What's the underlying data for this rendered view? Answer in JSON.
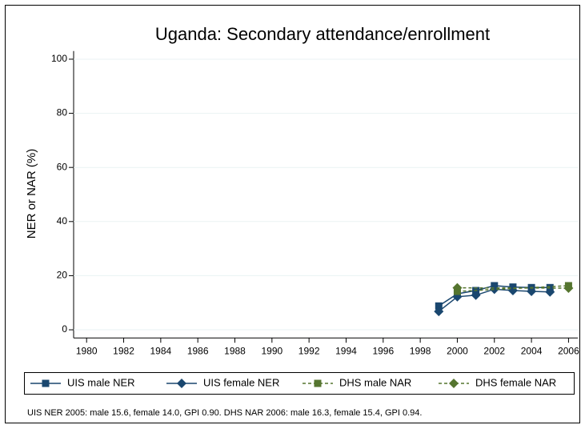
{
  "chart_data": {
    "type": "line",
    "title": "Uganda: Secondary attendance/enrollment",
    "y_label": "NER or NAR (%)",
    "note": "UIS NER 2005: male 15.6, female 14.0, GPI 0.90. DHS NAR 2006: male 16.3, female 15.4, GPI 0.94.",
    "x": [
      1999,
      2000,
      2001,
      2002,
      2003,
      2004,
      2005,
      2006
    ],
    "series": [
      {
        "name": "UIS male NER",
        "color": "#1a476f",
        "marker": "square",
        "dashed": false,
        "values": [
          8.8,
          13.3,
          14.5,
          16.3,
          15.8,
          15.6,
          15.6,
          null
        ]
      },
      {
        "name": "UIS female NER",
        "color": "#1a476f",
        "marker": "diamond",
        "dashed": false,
        "values": [
          6.8,
          12.2,
          12.8,
          15.0,
          14.5,
          14.2,
          14.0,
          null
        ]
      },
      {
        "name": "DHS male NAR",
        "color": "#55752f",
        "marker": "square",
        "dashed": true,
        "values": [
          null,
          14.2,
          null,
          null,
          null,
          null,
          null,
          16.3
        ]
      },
      {
        "name": "DHS female NAR",
        "color": "#55752f",
        "marker": "diamond",
        "dashed": true,
        "values": [
          null,
          15.5,
          null,
          null,
          null,
          null,
          null,
          15.4
        ]
      }
    ],
    "xlim": [
      1979.3,
      2006.5
    ],
    "xticks": [
      1980,
      1982,
      1984,
      1986,
      1988,
      1990,
      1992,
      1994,
      1996,
      1998,
      2000,
      2002,
      2004,
      2006
    ],
    "ylim": [
      -3,
      103
    ],
    "yticks": [
      0,
      20,
      40,
      60,
      80,
      100
    ],
    "grid": true
  }
}
